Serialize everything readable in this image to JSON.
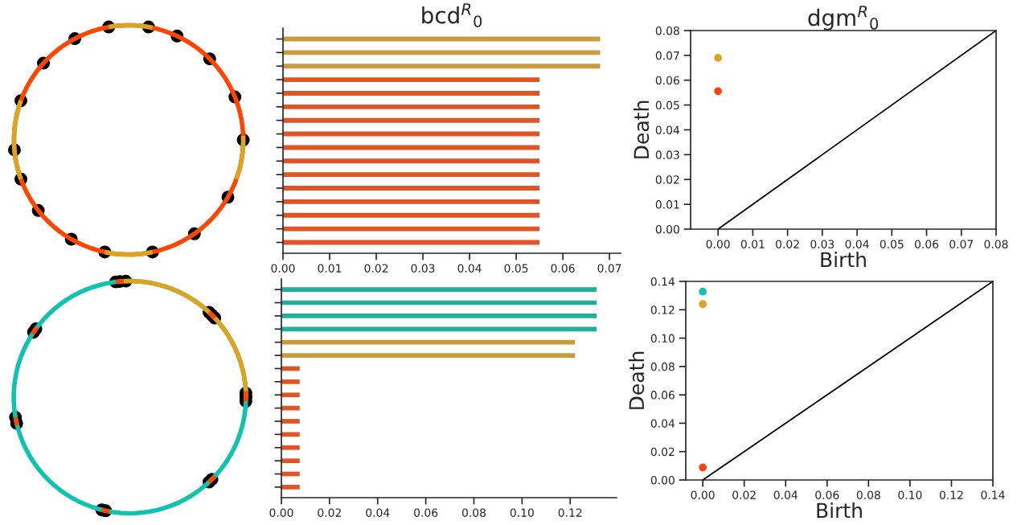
{
  "chart_data": [
    {
      "type": "bar",
      "orientation": "horizontal",
      "title": "bcd$^{R}$$_{0}$",
      "tick_labels": "x",
      "categories": [
        null,
        null,
        null,
        null,
        null,
        null,
        null,
        null,
        null,
        null,
        null,
        null,
        null,
        null,
        null,
        null
      ],
      "values": [
        0.068,
        0.068,
        0.068,
        0.055,
        0.055,
        0.055,
        0.055,
        0.055,
        0.055,
        0.055,
        0.055,
        0.055,
        0.055,
        0.055,
        0.055,
        0.055
      ],
      "colors": [
        "#c89b3c",
        "#c89b3c",
        "#c89b3c",
        "#e05526",
        "#e05526",
        "#e05526",
        "#e05526",
        "#e05526",
        "#e05526",
        "#e05526",
        "#e05526",
        "#e05526",
        "#e05526",
        "#e05526",
        "#e05526",
        "#e05526"
      ],
      "xlim": [
        0,
        0.0724
      ],
      "xticks": [
        {
          "value": 0,
          "label": "0.00"
        },
        {
          "value": 0.01,
          "label": "0.01"
        },
        {
          "value": 0.02,
          "label": "0.02"
        },
        {
          "value": 0.03,
          "label": "0.03"
        },
        {
          "value": 0.04,
          "label": "0.04"
        },
        {
          "value": 0.05,
          "label": "0.05"
        },
        {
          "value": 0.06,
          "label": "0.06"
        },
        {
          "value": 0.07,
          "label": "0.07"
        }
      ],
      "grid": false
    },
    {
      "type": "scatter",
      "title": "dgm$^{R}$$_{0}$",
      "xlabel": "Birth",
      "ylabel": "Death",
      "grid": false,
      "series": [
        {
          "type": "line",
          "color": "#000000",
          "marker": "none",
          "x": [
            0,
            0.08
          ],
          "values": [
            0,
            0.08
          ]
        },
        {
          "color": "#daa520",
          "marker": "circle",
          "x": [
            0
          ],
          "values": [
            0.069
          ]
        },
        {
          "color": "#ff4500",
          "marker": "circle",
          "x": [
            0
          ],
          "values": [
            0.0556
          ]
        }
      ],
      "xlim": [
        -0.0079,
        0.08
      ],
      "xticks": [
        {
          "value": 0,
          "label": "0.00"
        },
        {
          "value": 0.01,
          "label": "0.01"
        },
        {
          "value": 0.02,
          "label": "0.02"
        },
        {
          "value": 0.03,
          "label": "0.03"
        },
        {
          "value": 0.04,
          "label": "0.04"
        },
        {
          "value": 0.05,
          "label": "0.05"
        },
        {
          "value": 0.06,
          "label": "0.06"
        },
        {
          "value": 0.07,
          "label": "0.07"
        },
        {
          "value": 0.08,
          "label": "0.08"
        }
      ],
      "ylim": [
        0,
        0.08
      ],
      "yticks": [
        {
          "value": 0,
          "label": "0.00"
        },
        {
          "value": 0.01,
          "label": "0.01"
        },
        {
          "value": 0.02,
          "label": "0.02"
        },
        {
          "value": 0.03,
          "label": "0.03"
        },
        {
          "value": 0.04,
          "label": "0.04"
        },
        {
          "value": 0.05,
          "label": "0.05"
        },
        {
          "value": 0.06,
          "label": "0.06"
        },
        {
          "value": 0.07,
          "label": "0.07"
        },
        {
          "value": 0.08,
          "label": "0.08"
        }
      ]
    },
    {
      "type": "bar",
      "orientation": "horizontal",
      "tick_labels": "x",
      "categories": [
        null,
        null,
        null,
        null,
        null,
        null,
        null,
        null,
        null,
        null,
        null,
        null,
        null,
        null,
        null,
        null
      ],
      "values": [
        0.131,
        0.131,
        0.131,
        0.131,
        0.122,
        0.122,
        0.0076,
        0.0076,
        0.0076,
        0.0076,
        0.0076,
        0.0076,
        0.0076,
        0.0076,
        0.0076,
        0.0076
      ],
      "colors": [
        "#20b09a",
        "#20b09a",
        "#20b09a",
        "#20b09a",
        "#c89b3c",
        "#c89b3c",
        "#e05526",
        "#e05526",
        "#e05526",
        "#e05526",
        "#e05526",
        "#e05526",
        "#e05526",
        "#e05526",
        "#e05526",
        "#e05526"
      ],
      "xlim": [
        0,
        0.1393
      ],
      "xticks": [
        {
          "value": 0,
          "label": "0.00"
        },
        {
          "value": 0.02,
          "label": "0.02"
        },
        {
          "value": 0.04,
          "label": "0.04"
        },
        {
          "value": 0.06,
          "label": "0.06"
        },
        {
          "value": 0.08,
          "label": "0.08"
        },
        {
          "value": 0.1,
          "label": "0.10"
        },
        {
          "value": 0.12,
          "label": "0.12"
        }
      ],
      "grid": false
    },
    {
      "type": "scatter",
      "xlabel": "Birth",
      "ylabel": "Death",
      "grid": false,
      "series": [
        {
          "type": "line",
          "color": "#000000",
          "marker": "none",
          "x": [
            0,
            0.14
          ],
          "values": [
            0,
            0.14
          ]
        },
        {
          "color": "#13c4a8",
          "marker": "circle",
          "x": [
            0
          ],
          "values": [
            0.1328
          ]
        },
        {
          "color": "#daa520",
          "marker": "circle",
          "x": [
            0
          ],
          "values": [
            0.124
          ]
        },
        {
          "color": "#ff4500",
          "marker": "circle",
          "x": [
            0
          ],
          "values": [
            0.0088
          ]
        }
      ],
      "xlim": [
        -0.0082,
        0.14
      ],
      "xticks": [
        {
          "value": 0,
          "label": "0.00"
        },
        {
          "value": 0.02,
          "label": "0.02"
        },
        {
          "value": 0.04,
          "label": "0.04"
        },
        {
          "value": 0.06,
          "label": "0.06"
        },
        {
          "value": 0.08,
          "label": "0.08"
        },
        {
          "value": 0.1,
          "label": "0.10"
        },
        {
          "value": 0.12,
          "label": "0.12"
        },
        {
          "value": 0.14,
          "label": "0.14"
        }
      ],
      "ylim": [
        0,
        0.14
      ],
      "yticks": [
        {
          "value": 0,
          "label": "0.00"
        },
        {
          "value": 0.02,
          "label": "0.02"
        },
        {
          "value": 0.04,
          "label": "0.04"
        },
        {
          "value": 0.06,
          "label": "0.06"
        },
        {
          "value": 0.08,
          "label": "0.08"
        },
        {
          "value": 0.1,
          "label": "0.10"
        },
        {
          "value": 0.12,
          "label": "0.12"
        },
        {
          "value": 0.14,
          "label": "0.14"
        }
      ]
    }
  ]
}
